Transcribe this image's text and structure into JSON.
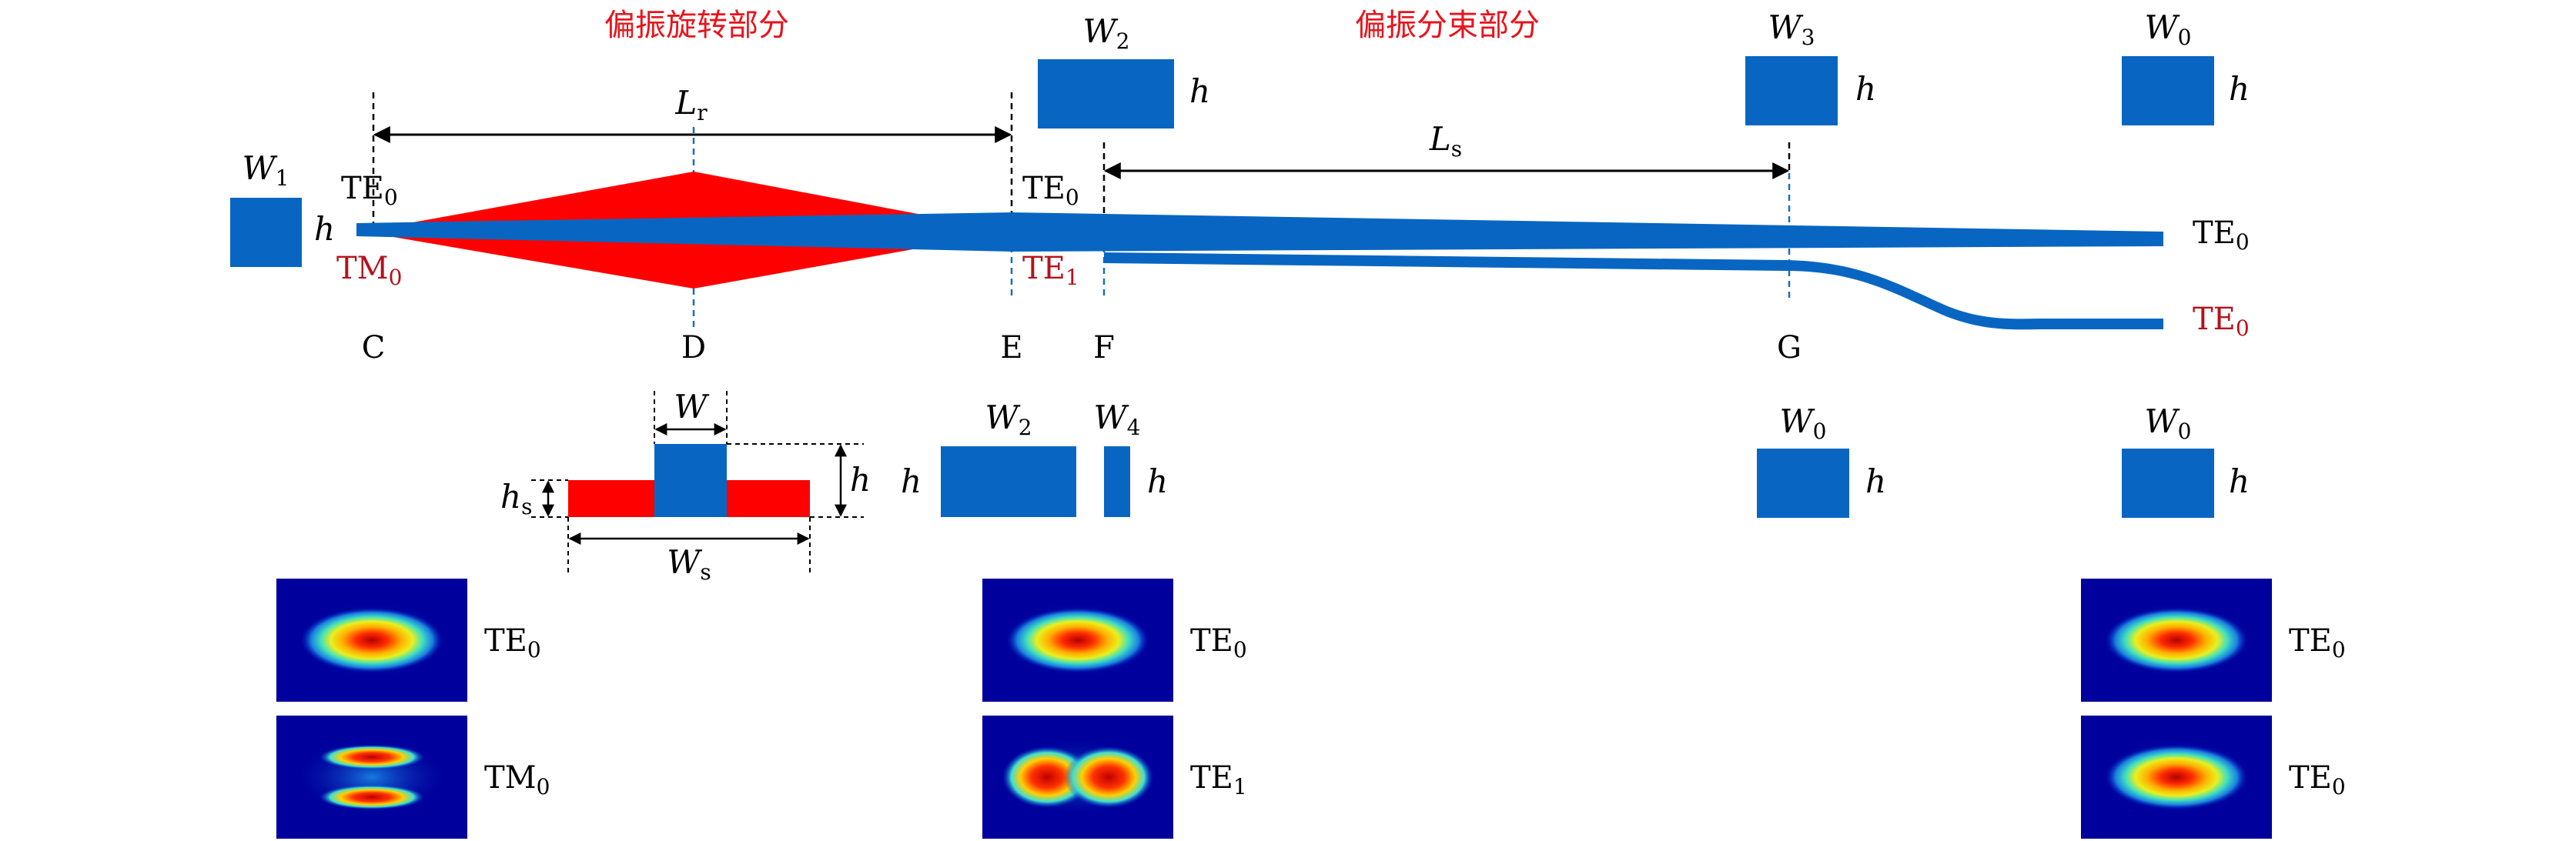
{
  "colors": {
    "waveguide": "#0866C2",
    "rotator": "#FF0000",
    "label_red": "#B5121B",
    "title_red": "#E8141C",
    "guide_dash": "#1A6FB8",
    "text": "#000000"
  },
  "sections": {
    "rotation": "偏振旋转部分",
    "splitting": "偏振分束部分"
  },
  "points": [
    "C",
    "D",
    "E",
    "F",
    "G"
  ],
  "dimensions": {
    "Lr": {
      "main": "L",
      "sub": "r"
    },
    "Ls": {
      "main": "L",
      "sub": "s"
    }
  },
  "input_cross_section": {
    "width": {
      "main": "W",
      "sub": "1"
    },
    "height": "h"
  },
  "top_cross_sections": [
    {
      "width": {
        "main": "W",
        "sub": "2"
      },
      "height": "h"
    },
    {
      "width": {
        "main": "W",
        "sub": "3"
      },
      "height": "h"
    },
    {
      "width": {
        "main": "W",
        "sub": "0"
      },
      "height": "h"
    }
  ],
  "mode_labels": {
    "input_te": {
      "main": "TE",
      "sub": "0"
    },
    "input_tm": {
      "main": "TM",
      "sub": "0"
    },
    "mid_te0": {
      "main": "TE",
      "sub": "0"
    },
    "mid_te1": {
      "main": "TE",
      "sub": "1"
    },
    "out_upper": {
      "main": "TE",
      "sub": "0"
    },
    "out_lower": {
      "main": "TE",
      "sub": "0"
    }
  },
  "rib_cross_section": {
    "w": "W",
    "h": "h",
    "hs": {
      "main": "h",
      "sub": "s"
    },
    "ws": {
      "main": "W",
      "sub": "s"
    }
  },
  "bottom_cross_sections": {
    "pair": {
      "left": {
        "main": "W",
        "sub": "2"
      },
      "right": {
        "main": "W",
        "sub": "4"
      },
      "height": "h"
    },
    "g": {
      "width": {
        "main": "W",
        "sub": "0"
      },
      "height": "h"
    },
    "out": {
      "width": {
        "main": "W",
        "sub": "0"
      },
      "height": "h"
    }
  },
  "mode_profiles": [
    {
      "column": "left",
      "row": 1,
      "mode": "TE0",
      "label": {
        "main": "TE",
        "sub": "0"
      }
    },
    {
      "column": "left",
      "row": 2,
      "mode": "TM0",
      "label": {
        "main": "TM",
        "sub": "0"
      }
    },
    {
      "column": "middle",
      "row": 1,
      "mode": "TE0",
      "label": {
        "main": "TE",
        "sub": "0"
      }
    },
    {
      "column": "middle",
      "row": 2,
      "mode": "TE1",
      "label": {
        "main": "TE",
        "sub": "1"
      }
    },
    {
      "column": "right",
      "row": 1,
      "mode": "TE0",
      "label": {
        "main": "TE",
        "sub": "0"
      }
    },
    {
      "column": "right",
      "row": 2,
      "mode": "TE0",
      "label": {
        "main": "TE",
        "sub": "0"
      }
    }
  ]
}
